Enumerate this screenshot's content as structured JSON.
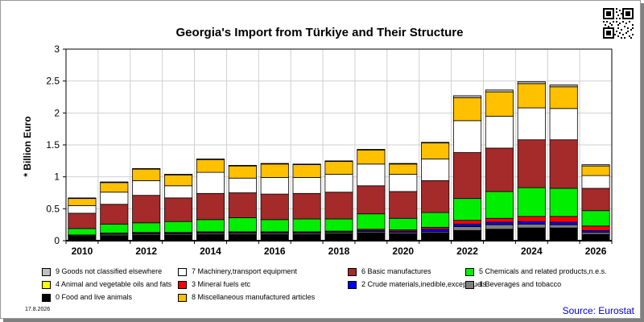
{
  "title": "Georgia's Import from Türkiye and Their Structure",
  "source": "Source: Eurostat",
  "date": "17.8.2026",
  "chart_data": {
    "type": "bar",
    "stacked": true,
    "title": "Georgia's Import from Türkiye and Their Structure",
    "ylabel": "* Billion Euro",
    "xlabel": "",
    "ylim": [
      0,
      3
    ],
    "yticks": [
      "0",
      "0.5",
      "1",
      "1.5",
      "2",
      "2.5",
      "3"
    ],
    "x_tick_labels": [
      "2010",
      "2012",
      "2014",
      "2016",
      "2018",
      "2020",
      "2022",
      "2024",
      "2026"
    ],
    "grid": true,
    "legend_position": "bottom",
    "categories": [
      "2010",
      "2011",
      "2012",
      "2013",
      "2014",
      "2015",
      "2016",
      "2017",
      "2018",
      "2019",
      "2020",
      "2021",
      "2022",
      "2023",
      "2024",
      "2025",
      "2026"
    ],
    "series": [
      {
        "name": "0 Food and live animals",
        "color": "#000000",
        "values": [
          0.06,
          0.08,
          0.09,
          0.09,
          0.1,
          0.1,
          0.1,
          0.1,
          0.11,
          0.12,
          0.11,
          0.12,
          0.16,
          0.18,
          0.2,
          0.2,
          0.1
        ]
      },
      {
        "name": "1 Beverages and tobacco",
        "color": "#808080",
        "values": [
          0.01,
          0.02,
          0.02,
          0.02,
          0.02,
          0.02,
          0.02,
          0.02,
          0.02,
          0.02,
          0.02,
          0.02,
          0.06,
          0.07,
          0.06,
          0.05,
          0.03
        ]
      },
      {
        "name": "2 Crude materials,inedible,except fuels",
        "color": "#0000ff",
        "values": [
          0.01,
          0.01,
          0.01,
          0.01,
          0.01,
          0.01,
          0.01,
          0.01,
          0.01,
          0.02,
          0.02,
          0.04,
          0.04,
          0.04,
          0.04,
          0.04,
          0.03
        ]
      },
      {
        "name": "3 Mineral fuels etc",
        "color": "#ff0000",
        "values": [
          0.01,
          0.01,
          0.01,
          0.01,
          0.01,
          0.01,
          0.01,
          0.01,
          0.01,
          0.02,
          0.02,
          0.03,
          0.06,
          0.06,
          0.08,
          0.09,
          0.07
        ]
      },
      {
        "name": "4 Animal and vegetable oils and fats",
        "color": "#ffff00",
        "values": [
          0.0,
          0.0,
          0.0,
          0.0,
          0.0,
          0.0,
          0.0,
          0.0,
          0.0,
          0.0,
          0.0,
          0.0,
          0.0,
          0.0,
          0.0,
          0.0,
          0.0
        ]
      },
      {
        "name": "5 Chemicals and related products,n.e.s.",
        "color": "#00ee00",
        "values": [
          0.1,
          0.14,
          0.15,
          0.17,
          0.19,
          0.22,
          0.19,
          0.2,
          0.19,
          0.24,
          0.18,
          0.23,
          0.34,
          0.42,
          0.45,
          0.44,
          0.24
        ]
      },
      {
        "name": "6 Basic manufactures",
        "color": "#a52a2a",
        "values": [
          0.24,
          0.31,
          0.43,
          0.37,
          0.41,
          0.39,
          0.4,
          0.4,
          0.42,
          0.44,
          0.42,
          0.5,
          0.72,
          0.68,
          0.75,
          0.76,
          0.35
        ]
      },
      {
        "name": "7 Machinery,transport equipment",
        "color": "#ffffff",
        "values": [
          0.12,
          0.19,
          0.23,
          0.19,
          0.33,
          0.23,
          0.26,
          0.25,
          0.28,
          0.34,
          0.27,
          0.34,
          0.5,
          0.5,
          0.5,
          0.49,
          0.2
        ]
      },
      {
        "name": "8 Miscellaneous manufactured articles",
        "color": "#ffc000",
        "values": [
          0.11,
          0.15,
          0.18,
          0.17,
          0.2,
          0.19,
          0.21,
          0.2,
          0.2,
          0.22,
          0.16,
          0.25,
          0.36,
          0.38,
          0.38,
          0.34,
          0.15
        ]
      },
      {
        "name": "9 Goods not classified elsewhere",
        "color": "#c0c0c0",
        "values": [
          0.01,
          0.01,
          0.01,
          0.01,
          0.01,
          0.01,
          0.01,
          0.01,
          0.01,
          0.01,
          0.01,
          0.01,
          0.03,
          0.03,
          0.03,
          0.03,
          0.02
        ]
      }
    ],
    "legend_order": [
      9,
      7,
      6,
      5,
      4,
      3,
      2,
      1,
      0,
      8
    ]
  }
}
